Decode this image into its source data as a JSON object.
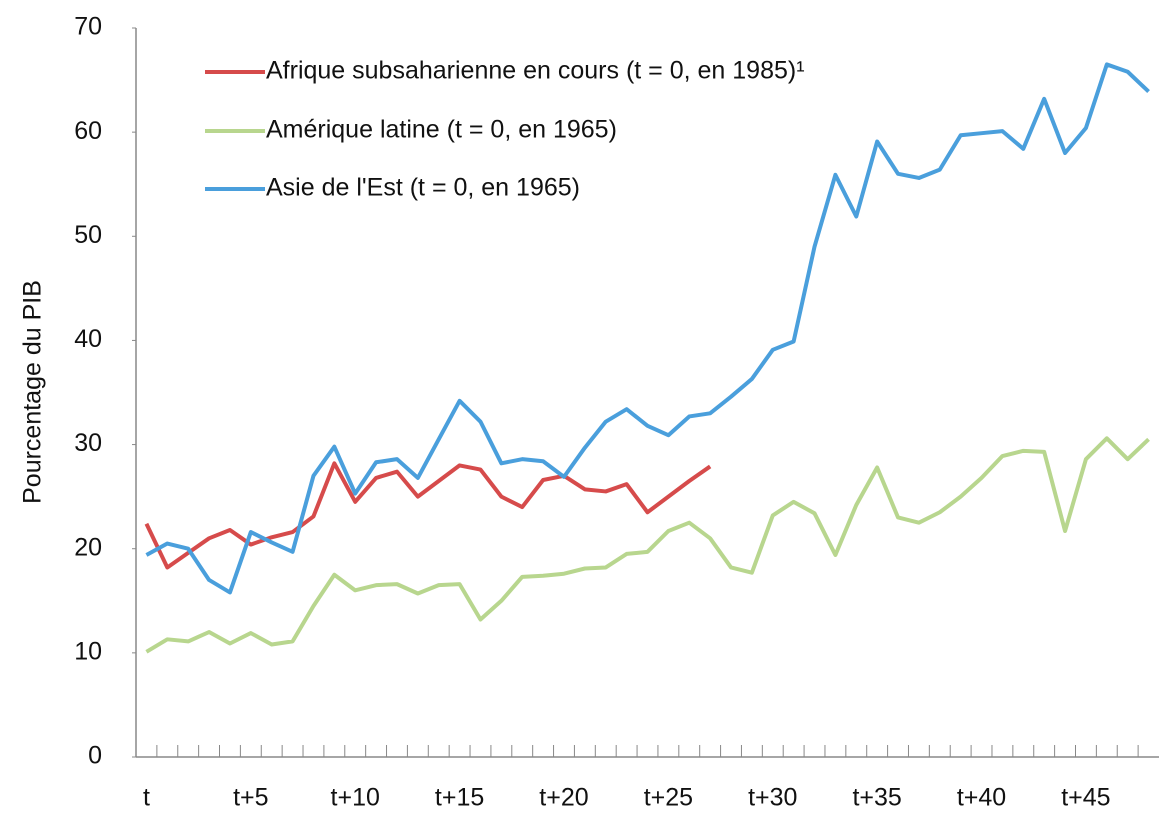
{
  "chart_data": {
    "type": "line",
    "y_label": "Pourcentage du PIB",
    "categories": [
      "t",
      null,
      null,
      null,
      null,
      "t+5",
      null,
      null,
      null,
      null,
      "t+10",
      null,
      null,
      null,
      null,
      "t+15",
      null,
      null,
      null,
      null,
      "t+20",
      null,
      null,
      null,
      null,
      "t+25",
      null,
      null,
      null,
      null,
      "t+30",
      null,
      null,
      null,
      null,
      "t+35",
      null,
      null,
      null,
      null,
      "t+40",
      null,
      null,
      null,
      null,
      "t+45",
      null,
      null,
      null
    ],
    "series": [
      {
        "name": "Afrique subsaharienne en cours (t = 0, en 1985)¹",
        "color": "#d64b4b",
        "values": [
          22.4,
          18.2,
          19.6,
          21.0,
          21.8,
          20.4,
          21.1,
          21.6,
          23.1,
          28.2,
          24.5,
          26.8,
          27.4,
          25.0,
          26.5,
          28.0,
          27.6,
          25.0,
          24.0,
          26.6,
          27.0,
          25.7,
          25.5,
          26.2,
          23.5,
          25.0,
          26.5,
          27.9,
          null,
          null,
          null,
          null,
          null,
          null,
          null,
          null,
          null,
          null,
          null,
          null,
          null,
          null,
          null,
          null,
          null,
          null,
          null,
          null,
          null
        ]
      },
      {
        "name": "Amérique latine (t = 0, en 1965)",
        "color": "#b8d68e",
        "values": [
          10.1,
          11.3,
          11.1,
          12.0,
          10.9,
          11.9,
          10.8,
          11.1,
          14.5,
          17.5,
          16.0,
          16.5,
          16.6,
          15.7,
          16.5,
          16.6,
          13.2,
          15.0,
          17.3,
          17.4,
          17.6,
          18.1,
          18.2,
          19.5,
          19.7,
          21.7,
          22.5,
          21.0,
          18.2,
          17.7,
          23.2,
          24.5,
          23.4,
          19.4,
          24.2,
          27.8,
          23.0,
          22.5,
          23.5,
          25.0,
          26.8,
          28.9,
          29.4,
          29.3,
          21.7,
          28.6,
          30.6,
          28.6,
          30.5
        ]
      },
      {
        "name": "Asie de l'Est (t = 0, en 1965)",
        "color": "#4a9fdc",
        "values": [
          19.4,
          20.5,
          20.0,
          17.0,
          15.8,
          21.6,
          20.6,
          19.7,
          27.0,
          29.8,
          25.3,
          28.3,
          28.6,
          26.8,
          30.5,
          34.2,
          32.2,
          28.2,
          28.6,
          28.4,
          26.9,
          29.7,
          32.2,
          33.4,
          31.8,
          30.9,
          32.7,
          33.0,
          34.6,
          36.3,
          39.1,
          39.9,
          49.0,
          55.9,
          51.9,
          59.1,
          56.0,
          55.6,
          56.4,
          59.7,
          59.9,
          60.1,
          58.4,
          63.2,
          58.0,
          60.4,
          66.5,
          65.8,
          63.9
        ]
      }
    ],
    "ylim": [
      0,
      70
    ],
    "yticks": [
      0,
      10,
      20,
      30,
      40,
      50,
      60,
      70
    ],
    "grid": false,
    "legend": "upper left"
  }
}
